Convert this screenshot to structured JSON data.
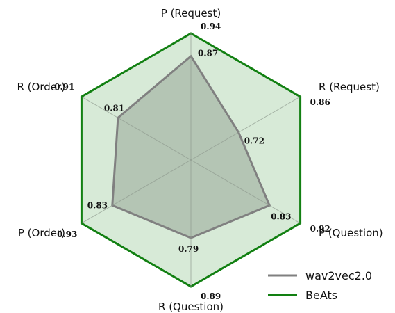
{
  "chart_data": {
    "type": "radar",
    "axes": [
      "P (Request)",
      "R (Request)",
      "P (Question)",
      "R (Question)",
      "P (Order)",
      "R (Order)"
    ],
    "series": [
      {
        "name": "BeAts",
        "values": [
          0.94,
          0.86,
          0.92,
          0.89,
          0.93,
          0.91
        ],
        "stroke": "#128012",
        "fill": "#d7ead7"
      },
      {
        "name": "wav2vec2.0",
        "values": [
          0.87,
          0.72,
          0.83,
          0.79,
          0.83,
          0.81
        ],
        "stroke": "#808080",
        "fill": "#a8b8a8"
      }
    ],
    "grid": true,
    "legend": "bottom-right"
  }
}
